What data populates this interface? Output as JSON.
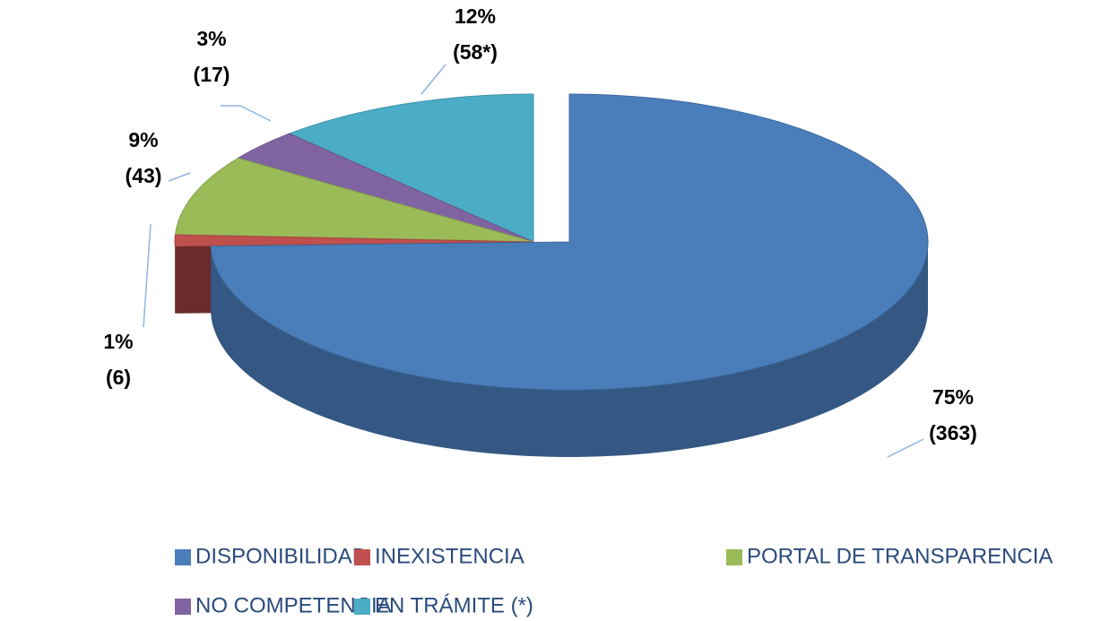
{
  "chart_data": {
    "type": "pie3d",
    "categories": [
      "DISPONIBILIDAD",
      "INEXISTENCIA",
      "PORTAL DE TRANSPARENCIA",
      "NO COMPETENCIA",
      "EN TRÁMITE (*)"
    ],
    "values": [
      75,
      1,
      9,
      3,
      12
    ],
    "value_labels": [
      "75%",
      "1%",
      "9%",
      "3%",
      "12%"
    ],
    "counts": [
      363,
      6,
      43,
      17,
      58
    ],
    "count_labels": [
      "(363)",
      "(6)",
      "(43)",
      "(17)",
      "(58*)"
    ],
    "colors": [
      "#4a7ebb",
      "#c0504d",
      "#9bbb59",
      "#8064a2",
      "#4bacc6"
    ],
    "legend": "bottom"
  }
}
